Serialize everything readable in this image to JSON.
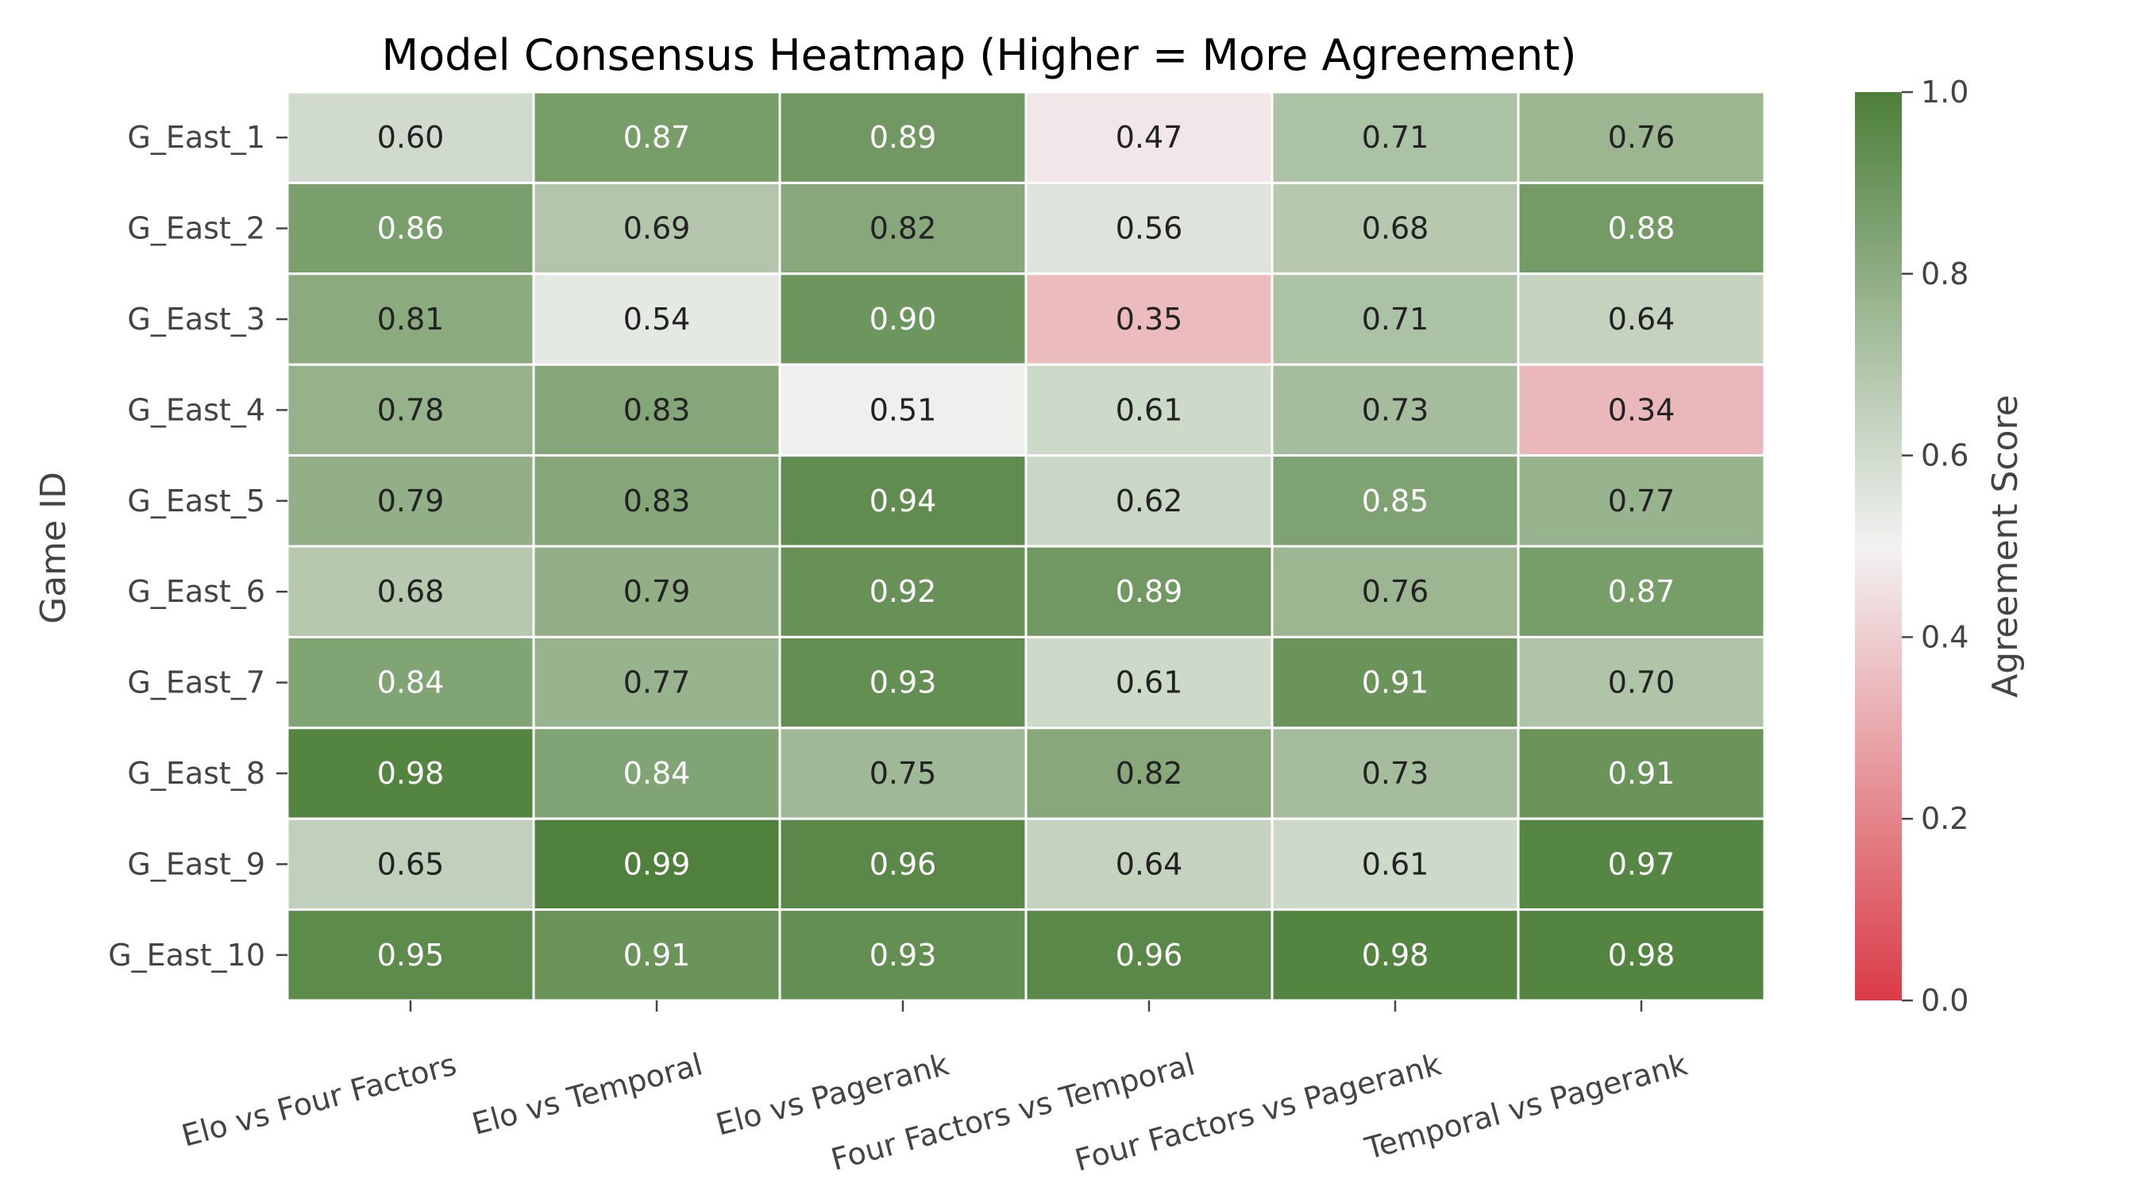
{
  "chart_data": {
    "type": "heatmap",
    "title": "Model Consensus Heatmap (Higher = More Agreement)",
    "xlabel": "",
    "ylabel": "Game ID",
    "x_categories": [
      "Elo vs Four Factors",
      "Elo vs Temporal",
      "Elo vs Pagerank",
      "Four Factors vs Temporal",
      "Four Factors vs Pagerank",
      "Temporal vs Pagerank"
    ],
    "y_categories": [
      "G_East_1",
      "G_East_2",
      "G_East_3",
      "G_East_4",
      "G_East_5",
      "G_East_6",
      "G_East_7",
      "G_East_8",
      "G_East_9",
      "G_East_10"
    ],
    "values": [
      [
        0.6,
        0.87,
        0.89,
        0.47,
        0.71,
        0.76
      ],
      [
        0.86,
        0.69,
        0.82,
        0.56,
        0.68,
        0.88
      ],
      [
        0.81,
        0.54,
        0.9,
        0.35,
        0.71,
        0.64
      ],
      [
        0.78,
        0.83,
        0.51,
        0.61,
        0.73,
        0.34
      ],
      [
        0.79,
        0.83,
        0.94,
        0.62,
        0.85,
        0.77
      ],
      [
        0.68,
        0.79,
        0.92,
        0.89,
        0.76,
        0.87
      ],
      [
        0.84,
        0.77,
        0.93,
        0.61,
        0.91,
        0.7
      ],
      [
        0.98,
        0.84,
        0.75,
        0.82,
        0.73,
        0.91
      ],
      [
        0.65,
        0.99,
        0.96,
        0.64,
        0.61,
        0.97
      ],
      [
        0.95,
        0.91,
        0.93,
        0.96,
        0.98,
        0.98
      ]
    ],
    "value_range": [
      0.0,
      1.0
    ],
    "colorbar": {
      "label": "Agreement Score",
      "ticks": [
        0.0,
        0.2,
        0.4,
        0.6,
        0.8,
        1.0
      ],
      "tick_labels": [
        "0.0",
        "0.2",
        "0.4",
        "0.6",
        "0.8",
        "1.0"
      ]
    },
    "colors": {
      "low": "#da3b46",
      "mid": "#f2f2f2",
      "high": "#4c7f39"
    },
    "grid": false
  }
}
